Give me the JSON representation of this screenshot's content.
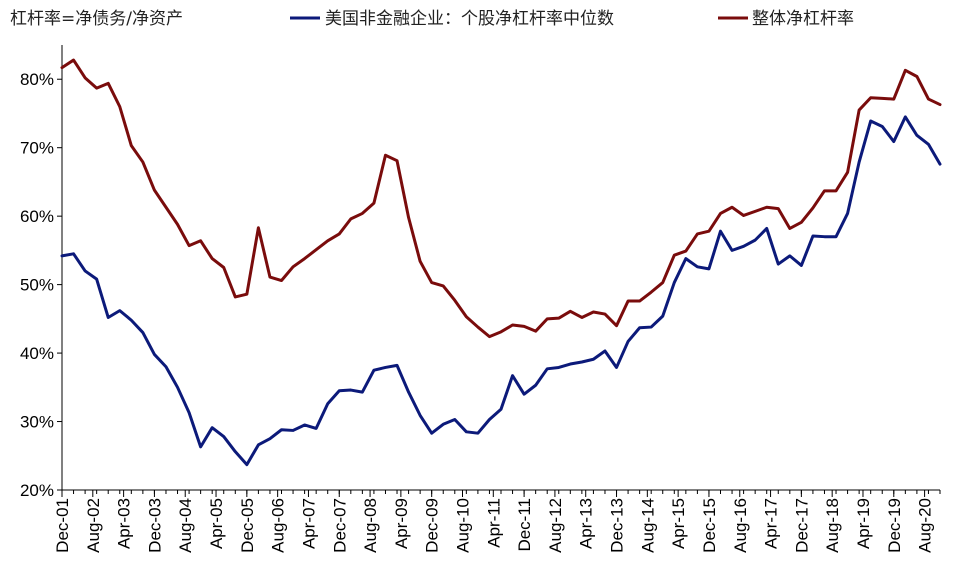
{
  "chart_data": {
    "type": "line",
    "title": "",
    "subtitle": "",
    "ylabel_note": "杠杆率=净债务/净资产",
    "xlabel": "",
    "ylabel": "",
    "ylim": [
      20,
      85
    ],
    "yticks": [
      20,
      30,
      40,
      50,
      60,
      70,
      80
    ],
    "y_tick_format": "%",
    "x_tick_labels": [
      "Dec-01",
      "Aug-02",
      "Apr-03",
      "Dec-03",
      "Aug-04",
      "Apr-05",
      "Dec-05",
      "Aug-06",
      "Apr-07",
      "Dec-07",
      "Aug-08",
      "Apr-09",
      "Dec-09",
      "Aug-10",
      "Apr-11",
      "Dec-11",
      "Aug-12",
      "Apr-13",
      "Dec-13",
      "Aug-14",
      "Apr-15",
      "Dec-15",
      "Aug-16",
      "Apr-17",
      "Dec-17",
      "Aug-18",
      "Apr-19",
      "Dec-19",
      "Aug-20"
    ],
    "x_frequency": "quarterly",
    "x_start": "Dec-01",
    "grid": false,
    "legend_position": "top",
    "series": [
      {
        "name": "美国非金融企业：个股净杠杆率中位数",
        "color": "#0c1a7a",
        "values": [
          54.2,
          54.5,
          52.0,
          50.8,
          45.2,
          46.2,
          44.8,
          43.0,
          39.8,
          38.0,
          35.0,
          31.3,
          26.3,
          29.1,
          27.8,
          25.6,
          23.7,
          26.6,
          27.5,
          28.8,
          28.7,
          29.5,
          29.0,
          32.6,
          34.5,
          34.6,
          34.3,
          37.5,
          37.9,
          38.2,
          34.3,
          30.9,
          28.3,
          29.6,
          30.3,
          28.5,
          28.3,
          30.3,
          31.8,
          36.7,
          34.0,
          35.3,
          37.7,
          37.9,
          38.4,
          38.7,
          39.1,
          40.3,
          37.9,
          41.7,
          43.7,
          43.8,
          45.4,
          50.3,
          53.8,
          52.6,
          52.3,
          57.8,
          55.0,
          55.6,
          56.5,
          58.2,
          53.0,
          54.2,
          52.8,
          57.1,
          57.0,
          57.0,
          60.4,
          67.9,
          73.9,
          73.1,
          70.9,
          74.5,
          71.8,
          70.5,
          67.6
        ]
      },
      {
        "name": "整体净杠杆率",
        "color": "#7a0c0c",
        "values": [
          81.7,
          82.8,
          80.2,
          78.7,
          79.4,
          76.0,
          70.3,
          67.9,
          63.8,
          61.3,
          58.8,
          55.7,
          56.4,
          53.8,
          52.5,
          48.2,
          48.6,
          58.3,
          51.1,
          50.6,
          52.6,
          53.8,
          55.1,
          56.4,
          57.4,
          59.6,
          60.4,
          61.9,
          68.9,
          68.1,
          59.8,
          53.4,
          50.3,
          49.8,
          47.7,
          45.3,
          43.8,
          42.4,
          43.1,
          44.1,
          43.9,
          43.2,
          45.0,
          45.1,
          46.1,
          45.2,
          46.0,
          45.7,
          44.0,
          47.6,
          47.6,
          48.9,
          50.3,
          54.3,
          54.9,
          57.4,
          57.8,
          60.4,
          61.3,
          60.1,
          60.7,
          61.3,
          61.1,
          58.2,
          59.1,
          61.2,
          63.7,
          63.7,
          66.4,
          75.5,
          77.3,
          77.2,
          77.1,
          81.3,
          80.4,
          77.1,
          76.3
        ]
      }
    ]
  }
}
